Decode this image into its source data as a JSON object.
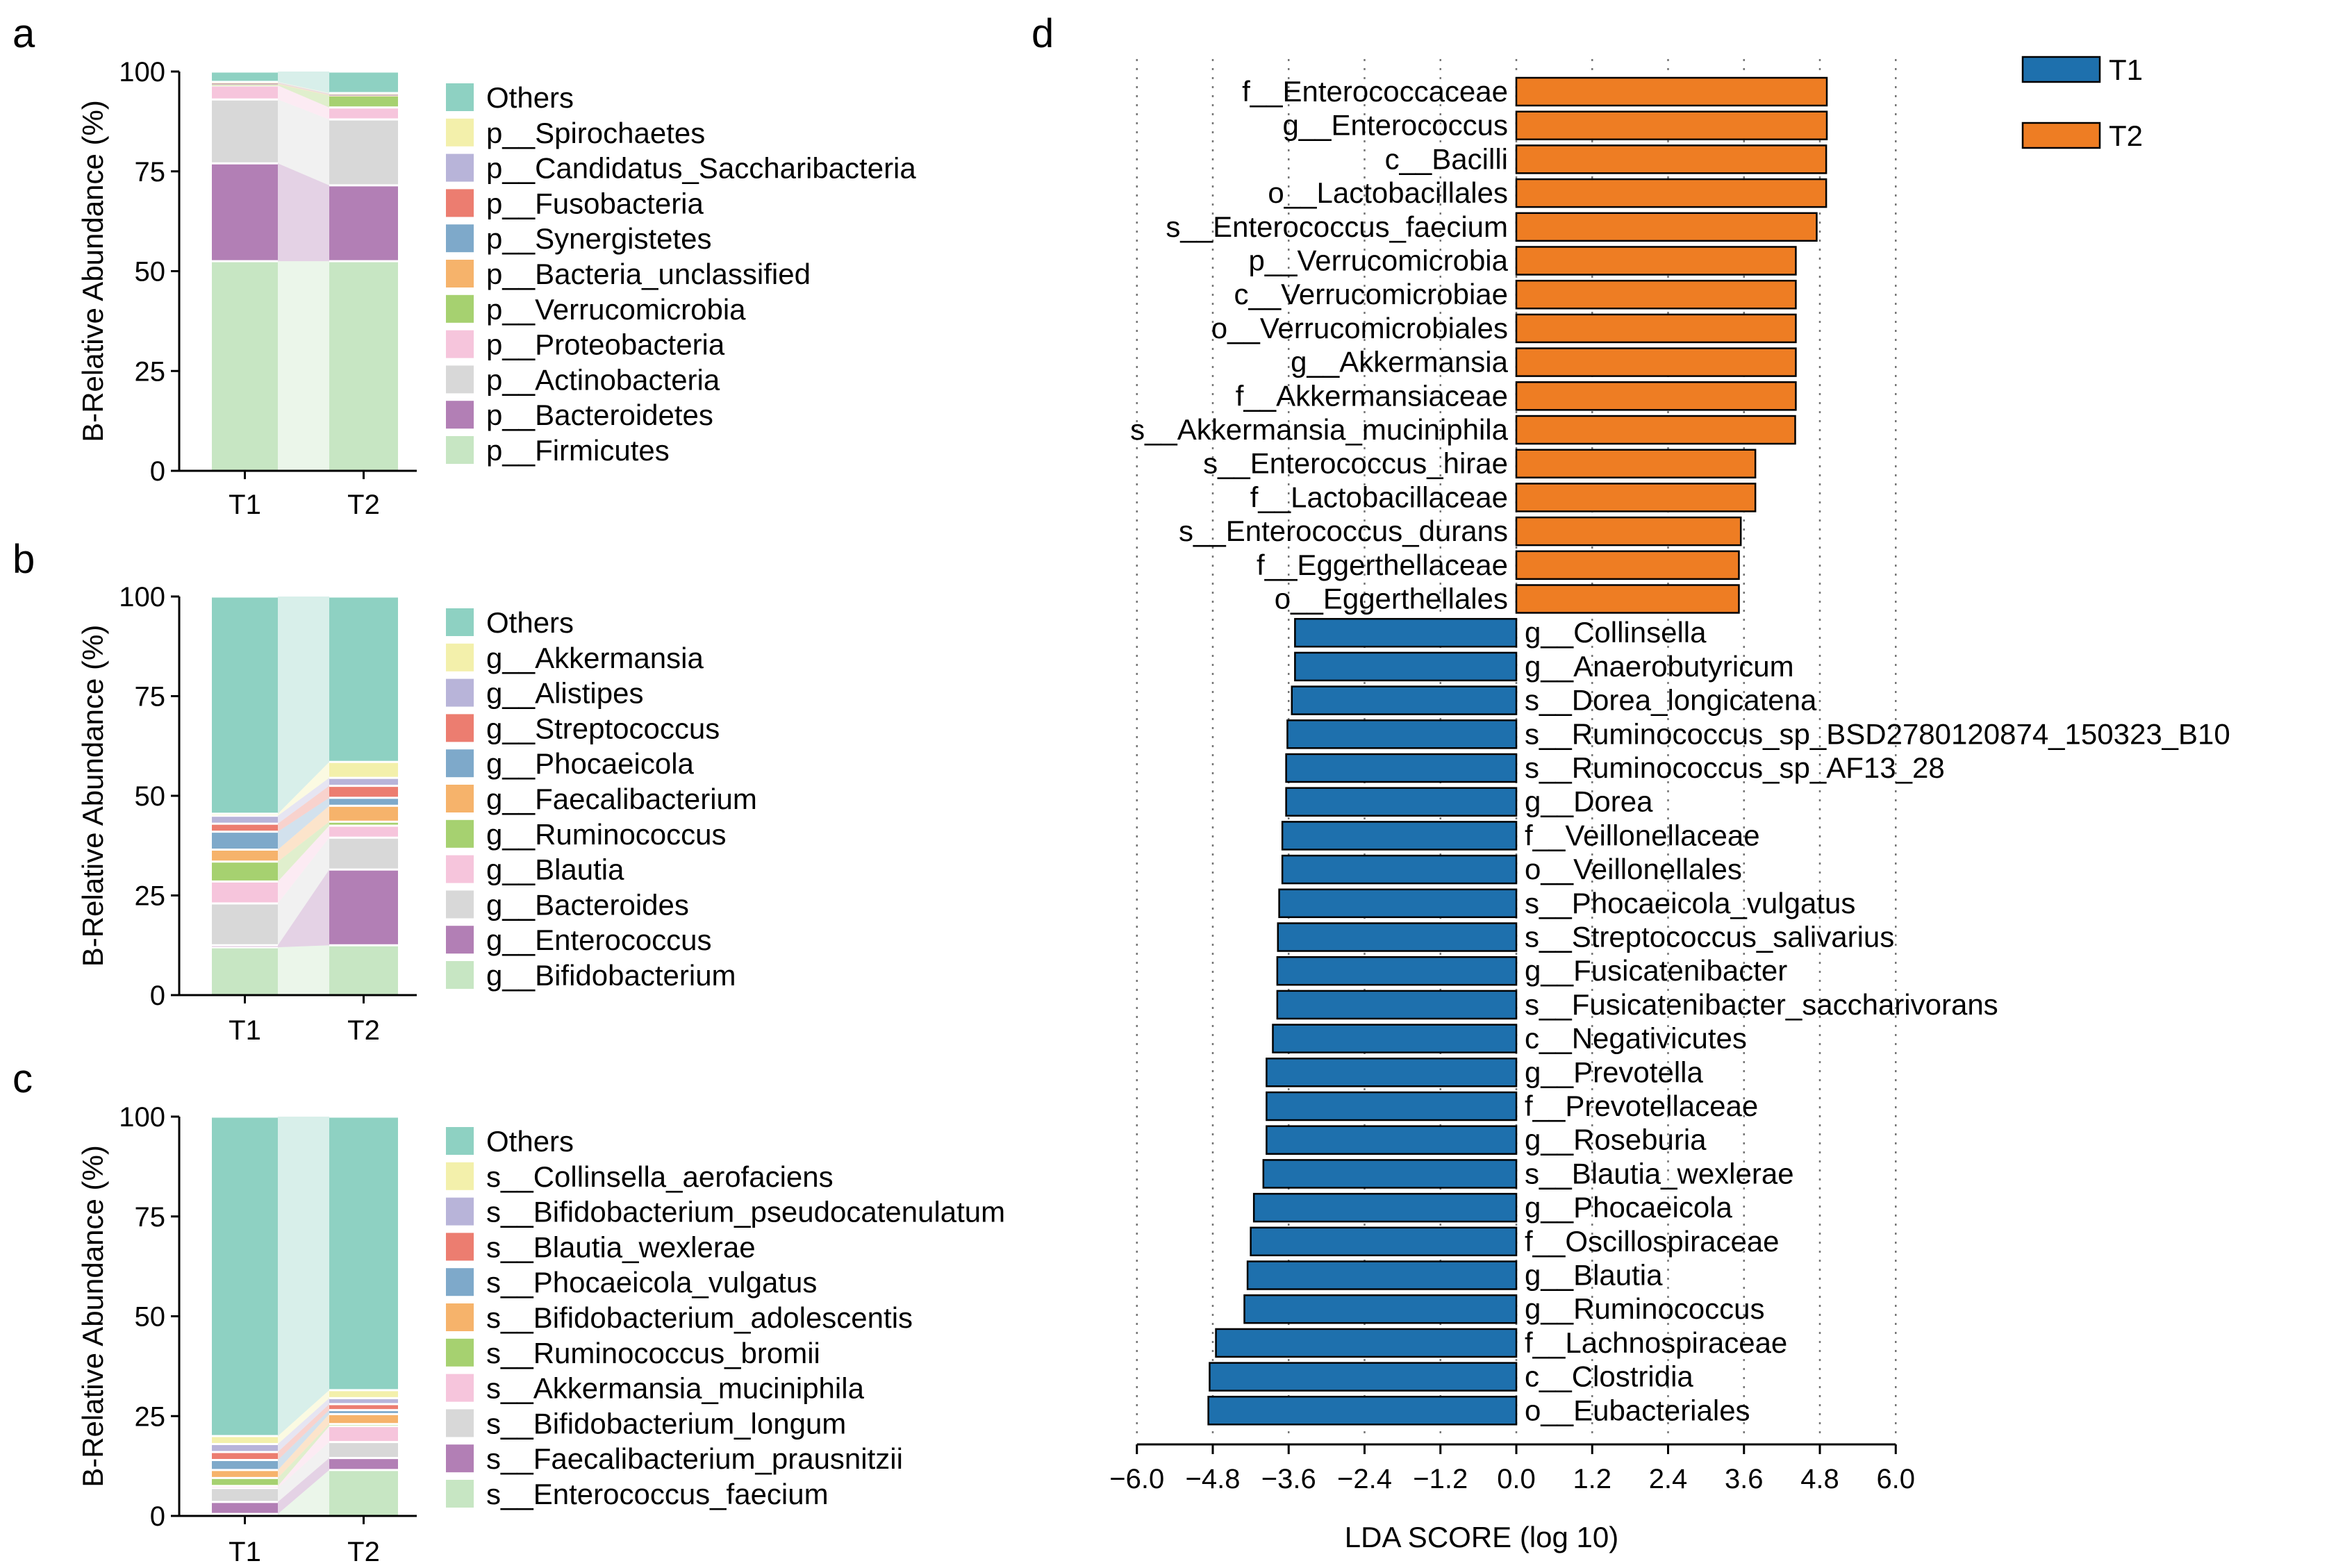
{
  "colors": {
    "stack": [
      "#c7e6c3",
      "#b27fb5",
      "#d8d8d8",
      "#f6c5dc",
      "#a6d170",
      "#f6b36b",
      "#7ea9ca",
      "#ec7d70",
      "#b8b4d9",
      "#f3f0ab",
      "#8ed1c2"
    ],
    "t1": "#1e70ad",
    "t2": "#ee7d23"
  },
  "chart_data": [
    {
      "panel": "a",
      "type": "bar",
      "stacked": true,
      "ylabel": "B-Relative Abundance (%)",
      "ylim": [
        0,
        100
      ],
      "yticks": [
        0,
        25,
        50,
        75,
        100
      ],
      "categories": [
        "T1",
        "T2"
      ],
      "series": [
        {
          "name": "p__Firmicutes",
          "values": [
            52.5,
            52.5
          ]
        },
        {
          "name": "p__Bacteroidetes",
          "values": [
            24.5,
            19
          ]
        },
        {
          "name": "p__Actinobacteria",
          "values": [
            16,
            16.5
          ]
        },
        {
          "name": "p__Proteobacteria",
          "values": [
            3.5,
            3
          ]
        },
        {
          "name": "p__Verrucomicrobia",
          "values": [
            0.3,
            3
          ]
        },
        {
          "name": "p__Bacteria_unclassified",
          "values": [
            0.2,
            0.2
          ]
        },
        {
          "name": "p__Synergistetes",
          "values": [
            0.1,
            0.1
          ]
        },
        {
          "name": "p__Fusobacteria",
          "values": [
            0.1,
            0.1
          ]
        },
        {
          "name": "p__Candidatus_Saccharibacteria",
          "values": [
            0.1,
            0.1
          ]
        },
        {
          "name": "p__Spirochaetes",
          "values": [
            0.1,
            0.1
          ]
        },
        {
          "name": "Others",
          "values": [
            2.6,
            5.4
          ]
        }
      ]
    },
    {
      "panel": "b",
      "type": "bar",
      "stacked": true,
      "ylabel": "B-Relative Abundance (%)",
      "ylim": [
        0,
        100
      ],
      "yticks": [
        0,
        25,
        50,
        75,
        100
      ],
      "categories": [
        "T1",
        "T2"
      ],
      "series": [
        {
          "name": "g__Bifidobacterium",
          "values": [
            12,
            12.5
          ]
        },
        {
          "name": "g__Enterococcus",
          "values": [
            0.5,
            19
          ]
        },
        {
          "name": "g__Bacteroides",
          "values": [
            10.5,
            8
          ]
        },
        {
          "name": "g__Blautia",
          "values": [
            5.5,
            3
          ]
        },
        {
          "name": "g__Ruminococcus",
          "values": [
            5,
            1
          ]
        },
        {
          "name": "g__Faecalibacterium",
          "values": [
            3,
            4
          ]
        },
        {
          "name": "g__Phocaeicola",
          "values": [
            4.5,
            2
          ]
        },
        {
          "name": "g__Streptococcus",
          "values": [
            2,
            3
          ]
        },
        {
          "name": "g__Alistipes",
          "values": [
            2,
            2
          ]
        },
        {
          "name": "g__Akkermansia",
          "values": [
            0.5,
            4
          ]
        },
        {
          "name": "Others",
          "values": [
            54.5,
            41.5
          ]
        }
      ]
    },
    {
      "panel": "c",
      "type": "bar",
      "stacked": true,
      "ylabel": "B-Relative Abundance (%)",
      "ylim": [
        0,
        100
      ],
      "yticks": [
        0,
        25,
        50,
        75,
        100
      ],
      "categories": [
        "T1",
        "T2"
      ],
      "series": [
        {
          "name": "s__Enterococcus_faecium",
          "values": [
            0.5,
            11.5
          ]
        },
        {
          "name": "s__Faecalibacterium_prausnitzii",
          "values": [
            3,
            3
          ]
        },
        {
          "name": "s__Bifidobacterium_longum",
          "values": [
            3.5,
            4
          ]
        },
        {
          "name": "s__Akkermansia_muciniphila",
          "values": [
            0.5,
            4
          ]
        },
        {
          "name": "s__Ruminococcus_bromii",
          "values": [
            2,
            0.5
          ]
        },
        {
          "name": "s__Bifidobacterium_adolescentis",
          "values": [
            2,
            2.5
          ]
        },
        {
          "name": "s__Phocaeicola_vulgatus",
          "values": [
            2.5,
            1
          ]
        },
        {
          "name": "s__Blautia_wexlerae",
          "values": [
            2,
            1.5
          ]
        },
        {
          "name": "s__Bifidobacterium_pseudocatenulatum",
          "values": [
            2,
            1.5
          ]
        },
        {
          "name": "s__Collinsella_aerofaciens",
          "values": [
            2,
            2
          ]
        },
        {
          "name": "Others",
          "values": [
            80,
            68.5
          ]
        }
      ]
    },
    {
      "panel": "d",
      "type": "bar",
      "orientation": "horizontal",
      "xlabel": "LDA SCORE (log 10)",
      "xlim": [
        -6.0,
        6.0
      ],
      "xticks": [
        "−6.0",
        "−4.8",
        "−3.6",
        "−2.4",
        "−1.2",
        "0.0",
        "1.2",
        "2.4",
        "3.6",
        "4.8",
        "6.0"
      ],
      "legend": [
        "T1",
        "T2"
      ],
      "bars": [
        {
          "label": "f__Enterococcaceae",
          "value": 4.91,
          "group": "T2"
        },
        {
          "label": "g__Enterococcus",
          "value": 4.91,
          "group": "T2"
        },
        {
          "label": "c__Bacilli",
          "value": 4.9,
          "group": "T2"
        },
        {
          "label": "o__Lactobacillales",
          "value": 4.9,
          "group": "T2"
        },
        {
          "label": "s__Enterococcus_faecium",
          "value": 4.75,
          "group": "T2"
        },
        {
          "label": "p__Verrucomicrobia",
          "value": 4.42,
          "group": "T2"
        },
        {
          "label": "c__Verrucomicrobiae",
          "value": 4.42,
          "group": "T2"
        },
        {
          "label": "o__Verrucomicrobiales",
          "value": 4.42,
          "group": "T2"
        },
        {
          "label": "g__Akkermansia",
          "value": 4.42,
          "group": "T2"
        },
        {
          "label": "f__Akkermansiaceae",
          "value": 4.42,
          "group": "T2"
        },
        {
          "label": "s__Akkermansia_muciniphila",
          "value": 4.41,
          "group": "T2"
        },
        {
          "label": "s__Enterococcus_hirae",
          "value": 3.78,
          "group": "T2"
        },
        {
          "label": "f__Lactobacillaceae",
          "value": 3.78,
          "group": "T2"
        },
        {
          "label": "s__Enterococcus_durans",
          "value": 3.55,
          "group": "T2"
        },
        {
          "label": "f__Eggerthellaceae",
          "value": 3.52,
          "group": "T2"
        },
        {
          "label": "o__Eggerthellales",
          "value": 3.52,
          "group": "T2"
        },
        {
          "label": "g__Collinsella",
          "value": -3.5,
          "group": "T1"
        },
        {
          "label": "g__Anaerobutyricum",
          "value": -3.5,
          "group": "T1"
        },
        {
          "label": "s__Dorea_longicatena",
          "value": -3.55,
          "group": "T1"
        },
        {
          "label": "s__Ruminococcus_sp_BSD2780120874_150323_B10",
          "value": -3.62,
          "group": "T1"
        },
        {
          "label": "s__Ruminococcus_sp_AF13_28",
          "value": -3.64,
          "group": "T1"
        },
        {
          "label": "g__Dorea",
          "value": -3.64,
          "group": "T1"
        },
        {
          "label": "f__Veillonellaceae",
          "value": -3.7,
          "group": "T1"
        },
        {
          "label": "o__Veillonellales",
          "value": -3.7,
          "group": "T1"
        },
        {
          "label": "s__Phocaeicola_vulgatus",
          "value": -3.75,
          "group": "T1"
        },
        {
          "label": "s__Streptococcus_salivarius",
          "value": -3.77,
          "group": "T1"
        },
        {
          "label": "g__Fusicatenibacter",
          "value": -3.78,
          "group": "T1"
        },
        {
          "label": "s__Fusicatenibacter_saccharivorans",
          "value": -3.78,
          "group": "T1"
        },
        {
          "label": "c__Negativicutes",
          "value": -3.85,
          "group": "T1"
        },
        {
          "label": "g__Prevotella",
          "value": -3.95,
          "group": "T1"
        },
        {
          "label": "f__Prevotellaceae",
          "value": -3.95,
          "group": "T1"
        },
        {
          "label": "g__Roseburia",
          "value": -3.95,
          "group": "T1"
        },
        {
          "label": "s__Blautia_wexlerae",
          "value": -4.0,
          "group": "T1"
        },
        {
          "label": "g__Phocaeicola",
          "value": -4.15,
          "group": "T1"
        },
        {
          "label": "f__Oscillospiraceae",
          "value": -4.2,
          "group": "T1"
        },
        {
          "label": "g__Blautia",
          "value": -4.25,
          "group": "T1"
        },
        {
          "label": "g__Ruminococcus",
          "value": -4.3,
          "group": "T1"
        },
        {
          "label": "f__Lachnospiraceae",
          "value": -4.75,
          "group": "T1"
        },
        {
          "label": "c__Clostridia",
          "value": -4.85,
          "group": "T1"
        },
        {
          "label": "o__Eubacteriales",
          "value": -4.87,
          "group": "T1"
        }
      ]
    }
  ]
}
